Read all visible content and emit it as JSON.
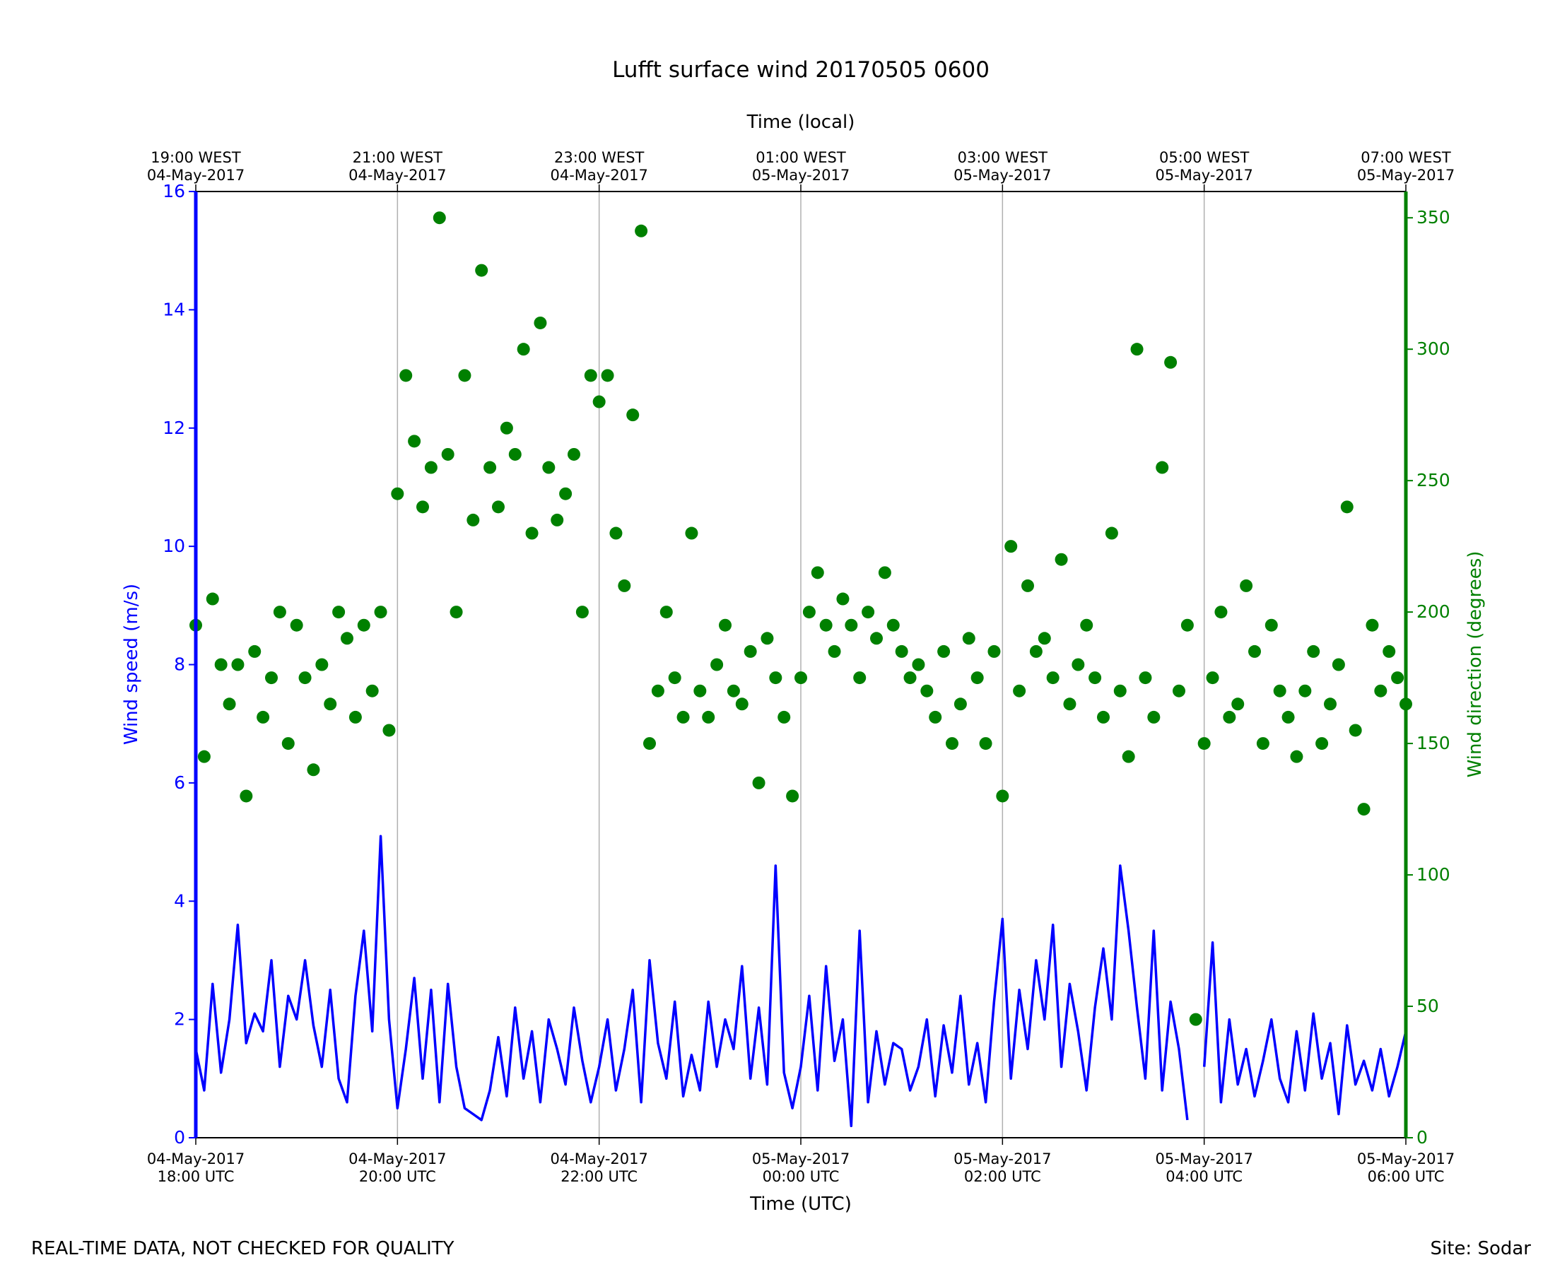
{
  "chart_data": {
    "type": "line-scatter",
    "title": "Lufft surface wind 20170505 0600",
    "xlabel": "Time (UTC)",
    "x2label": "Time (local)",
    "ylabel": "Wind speed (m/s)",
    "y2label": "Wind direction (degrees)",
    "footer_left": "REAL-TIME DATA, NOT CHECKED FOR QUALITY",
    "footer_right": "Site: Sodar",
    "grid": "x",
    "xlim": [
      "2017-05-04T18:00",
      "2017-05-05T06:00"
    ],
    "xticks": [
      {
        "value": "2017-05-04T18:00",
        "label": "04-May-2017\n18:00 UTC"
      },
      {
        "value": "2017-05-04T20:00",
        "label": "04-May-2017\n20:00 UTC"
      },
      {
        "value": "2017-05-04T22:00",
        "label": "04-May-2017\n22:00 UTC"
      },
      {
        "value": "2017-05-05T00:00",
        "label": "05-May-2017\n00:00 UTC"
      },
      {
        "value": "2017-05-05T02:00",
        "label": "05-May-2017\n02:00 UTC"
      },
      {
        "value": "2017-05-05T04:00",
        "label": "05-May-2017\n04:00 UTC"
      },
      {
        "value": "2017-05-05T06:00",
        "label": "05-May-2017\n06:00 UTC"
      }
    ],
    "x2ticks": [
      {
        "value": "2017-05-04T18:00",
        "label": "19:00 WEST\n04-May-2017"
      },
      {
        "value": "2017-05-04T20:00",
        "label": "21:00 WEST\n04-May-2017"
      },
      {
        "value": "2017-05-04T22:00",
        "label": "23:00 WEST\n04-May-2017"
      },
      {
        "value": "2017-05-05T00:00",
        "label": "01:00 WEST\n05-May-2017"
      },
      {
        "value": "2017-05-05T02:00",
        "label": "03:00 WEST\n05-May-2017"
      },
      {
        "value": "2017-05-05T04:00",
        "label": "05:00 WEST\n05-May-2017"
      },
      {
        "value": "2017-05-05T06:00",
        "label": "07:00 WEST\n05-May-2017"
      }
    ],
    "ylim": [
      0,
      16
    ],
    "yticks": [
      0,
      2,
      4,
      6,
      8,
      10,
      12,
      14,
      16
    ],
    "y2lim": [
      0,
      360
    ],
    "y2ticks": [
      0,
      50,
      100,
      150,
      200,
      250,
      300,
      350
    ],
    "x": [
      "2017-05-04T18:00",
      "2017-05-04T18:05",
      "2017-05-04T18:10",
      "2017-05-04T18:15",
      "2017-05-04T18:20",
      "2017-05-04T18:25",
      "2017-05-04T18:30",
      "2017-05-04T18:35",
      "2017-05-04T18:40",
      "2017-05-04T18:45",
      "2017-05-04T18:50",
      "2017-05-04T18:55",
      "2017-05-04T19:00",
      "2017-05-04T19:05",
      "2017-05-04T19:10",
      "2017-05-04T19:15",
      "2017-05-04T19:20",
      "2017-05-04T19:25",
      "2017-05-04T19:30",
      "2017-05-04T19:35",
      "2017-05-04T19:40",
      "2017-05-04T19:45",
      "2017-05-04T19:50",
      "2017-05-04T19:55",
      "2017-05-04T20:00",
      "2017-05-04T20:05",
      "2017-05-04T20:10",
      "2017-05-04T20:15",
      "2017-05-04T20:20",
      "2017-05-04T20:25",
      "2017-05-04T20:30",
      "2017-05-04T20:35",
      "2017-05-04T20:40",
      "2017-05-04T20:45",
      "2017-05-04T20:50",
      "2017-05-04T20:55",
      "2017-05-04T21:00",
      "2017-05-04T21:05",
      "2017-05-04T21:10",
      "2017-05-04T21:15",
      "2017-05-04T21:20",
      "2017-05-04T21:25",
      "2017-05-04T21:30",
      "2017-05-04T21:35",
      "2017-05-04T21:40",
      "2017-05-04T21:45",
      "2017-05-04T21:50",
      "2017-05-04T21:55",
      "2017-05-04T22:00",
      "2017-05-04T22:05",
      "2017-05-04T22:10",
      "2017-05-04T22:15",
      "2017-05-04T22:20",
      "2017-05-04T22:25",
      "2017-05-04T22:30",
      "2017-05-04T22:35",
      "2017-05-04T22:40",
      "2017-05-04T22:45",
      "2017-05-04T22:50",
      "2017-05-04T22:55",
      "2017-05-04T23:00",
      "2017-05-04T23:05",
      "2017-05-04T23:10",
      "2017-05-04T23:15",
      "2017-05-04T23:20",
      "2017-05-04T23:25",
      "2017-05-04T23:30",
      "2017-05-04T23:35",
      "2017-05-04T23:40",
      "2017-05-04T23:45",
      "2017-05-04T23:50",
      "2017-05-04T23:55",
      "2017-05-05T00:00",
      "2017-05-05T00:05",
      "2017-05-05T00:10",
      "2017-05-05T00:15",
      "2017-05-05T00:20",
      "2017-05-05T00:25",
      "2017-05-05T00:30",
      "2017-05-05T00:35",
      "2017-05-05T00:40",
      "2017-05-05T00:45",
      "2017-05-05T00:50",
      "2017-05-05T00:55",
      "2017-05-05T01:00",
      "2017-05-05T01:05",
      "2017-05-05T01:10",
      "2017-05-05T01:15",
      "2017-05-05T01:20",
      "2017-05-05T01:25",
      "2017-05-05T01:30",
      "2017-05-05T01:35",
      "2017-05-05T01:40",
      "2017-05-05T01:45",
      "2017-05-05T01:50",
      "2017-05-05T01:55",
      "2017-05-05T02:00",
      "2017-05-05T02:05",
      "2017-05-05T02:10",
      "2017-05-05T02:15",
      "2017-05-05T02:20",
      "2017-05-05T02:25",
      "2017-05-05T02:30",
      "2017-05-05T02:35",
      "2017-05-05T02:40",
      "2017-05-05T02:45",
      "2017-05-05T02:50",
      "2017-05-05T02:55",
      "2017-05-05T03:00",
      "2017-05-05T03:05",
      "2017-05-05T03:10",
      "2017-05-05T03:15",
      "2017-05-05T03:20",
      "2017-05-05T03:25",
      "2017-05-05T03:30",
      "2017-05-05T03:35",
      "2017-05-05T03:40",
      "2017-05-05T03:45",
      "2017-05-05T03:50",
      "2017-05-05T03:55",
      "2017-05-05T04:00",
      "2017-05-05T04:05",
      "2017-05-05T04:10",
      "2017-05-05T04:15",
      "2017-05-05T04:20",
      "2017-05-05T04:25",
      "2017-05-05T04:30",
      "2017-05-05T04:35",
      "2017-05-05T04:40",
      "2017-05-05T04:45",
      "2017-05-05T04:50",
      "2017-05-05T04:55",
      "2017-05-05T05:00",
      "2017-05-05T05:05",
      "2017-05-05T05:10",
      "2017-05-05T05:15",
      "2017-05-05T05:20",
      "2017-05-05T05:25",
      "2017-05-05T05:30",
      "2017-05-05T05:35",
      "2017-05-05T05:40",
      "2017-05-05T05:45",
      "2017-05-05T05:50",
      "2017-05-05T05:55",
      "2017-05-05T06:00"
    ],
    "series": [
      {
        "name": "Wind speed",
        "kind": "line",
        "axis": "y",
        "color": "#0000ff",
        "values": [
          1.5,
          0.8,
          2.6,
          1.1,
          2.0,
          3.6,
          1.6,
          2.1,
          1.8,
          3.0,
          1.2,
          2.4,
          2.0,
          3.0,
          1.9,
          1.2,
          2.5,
          1.0,
          0.6,
          2.4,
          3.5,
          1.8,
          5.1,
          2.0,
          0.5,
          1.5,
          2.7,
          1.0,
          2.5,
          0.6,
          2.6,
          1.2,
          0.5,
          0.4,
          0.3,
          0.8,
          1.7,
          0.7,
          2.2,
          1.0,
          1.8,
          0.6,
          2.0,
          1.5,
          0.9,
          2.2,
          1.3,
          0.6,
          1.2,
          2.0,
          0.8,
          1.5,
          2.5,
          0.6,
          3.0,
          1.6,
          1.0,
          2.3,
          0.7,
          1.4,
          0.8,
          2.3,
          1.2,
          2.0,
          1.5,
          2.9,
          1.0,
          2.2,
          0.9,
          4.6,
          1.1,
          0.5,
          1.2,
          2.4,
          0.8,
          2.9,
          1.3,
          2.0,
          0.2,
          3.5,
          0.6,
          1.8,
          0.9,
          1.6,
          1.5,
          0.8,
          1.2,
          2.0,
          0.7,
          1.9,
          1.1,
          2.4,
          0.9,
          1.6,
          0.6,
          2.3,
          3.7,
          1.0,
          2.5,
          1.5,
          3.0,
          2.0,
          3.6,
          1.2,
          2.6,
          1.8,
          0.8,
          2.2,
          3.2,
          2.0,
          4.6,
          3.5,
          2.2,
          1.0,
          3.5,
          0.8,
          2.3,
          1.5,
          0.3,
          null,
          1.2,
          3.3,
          0.6,
          2.0,
          0.9,
          1.5,
          0.7,
          1.3,
          2.0,
          1.0,
          0.6,
          1.8,
          0.8,
          2.1,
          1.0,
          1.6,
          0.4,
          1.9,
          0.9,
          1.3,
          0.8,
          1.5,
          0.7,
          1.2,
          1.8
        ]
      },
      {
        "name": "Wind direction",
        "kind": "scatter",
        "axis": "y2",
        "color": "#008000",
        "values": [
          195,
          145,
          205,
          180,
          165,
          180,
          130,
          185,
          160,
          175,
          200,
          150,
          195,
          175,
          140,
          180,
          165,
          200,
          190,
          160,
          195,
          170,
          200,
          155,
          245,
          290,
          265,
          240,
          255,
          350,
          260,
          200,
          290,
          235,
          330,
          255,
          240,
          270,
          260,
          300,
          230,
          310,
          255,
          235,
          245,
          260,
          200,
          290,
          280,
          290,
          230,
          210,
          275,
          345,
          150,
          170,
          200,
          175,
          160,
          230,
          170,
          160,
          180,
          195,
          170,
          165,
          185,
          135,
          190,
          175,
          160,
          130,
          175,
          200,
          215,
          195,
          185,
          205,
          195,
          175,
          200,
          190,
          215,
          195,
          185,
          175,
          180,
          170,
          160,
          185,
          150,
          165,
          190,
          175,
          150,
          185,
          130,
          225,
          170,
          210,
          185,
          190,
          175,
          220,
          165,
          180,
          195,
          175,
          160,
          230,
          170,
          145,
          300,
          175,
          160,
          255,
          295,
          170,
          195,
          45,
          150,
          175,
          200,
          160,
          165,
          210,
          185,
          150,
          195,
          170,
          160,
          145,
          170,
          185,
          150,
          165,
          180,
          240,
          155,
          125,
          195,
          170,
          185,
          175,
          165
        ]
      }
    ]
  }
}
